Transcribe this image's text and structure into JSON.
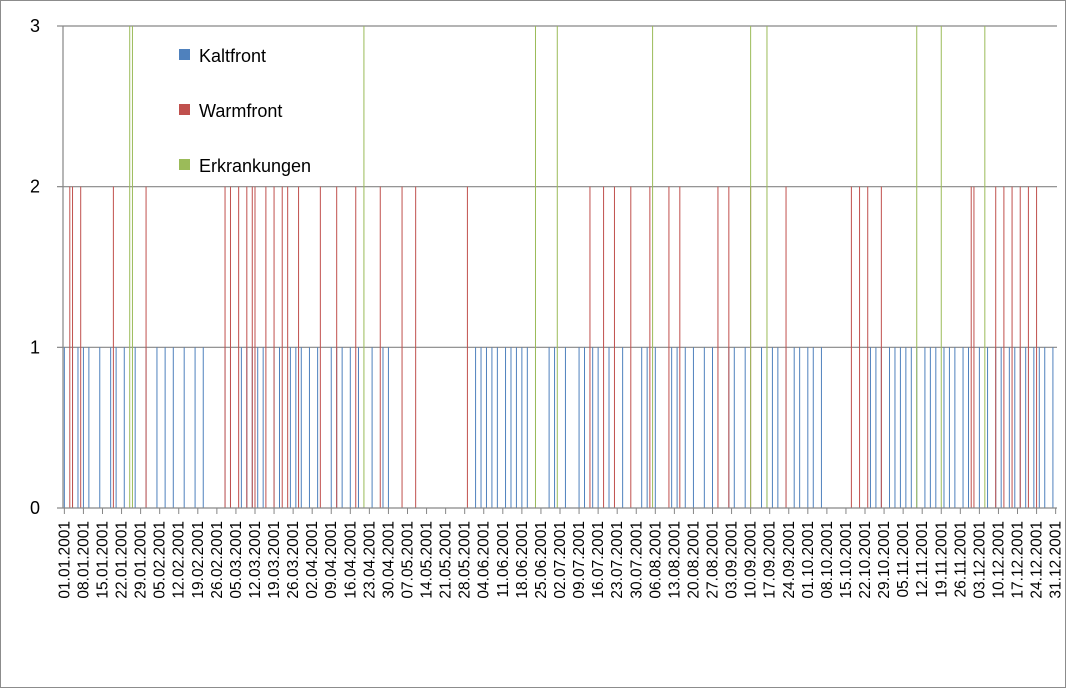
{
  "chart_data": {
    "type": "bar",
    "title": "",
    "xlabel": "",
    "ylabel": "",
    "ylim": [
      0,
      3
    ],
    "yticks": [
      "0",
      "1",
      "2",
      "3"
    ],
    "grid": true,
    "legend_position": "top-left",
    "x_range": [
      "01.01.2001",
      "31.12.2001"
    ],
    "xtick_labels": [
      "01.01.2001",
      "08.01.2001",
      "15.01.2001",
      "22.01.2001",
      "29.01.2001",
      "05.02.2001",
      "12.02.2001",
      "19.02.2001",
      "26.02.2001",
      "05.03.2001",
      "12.03.2001",
      "19.03.2001",
      "26.03.2001",
      "02.04.2001",
      "09.04.2001",
      "16.04.2001",
      "23.04.2001",
      "30.04.2001",
      "07.05.2001",
      "14.05.2001",
      "21.05.2001",
      "28.05.2001",
      "04.06.2001",
      "11.06.2001",
      "18.06.2001",
      "25.06.2001",
      "02.07.2001",
      "09.07.2001",
      "16.07.2001",
      "23.07.2001",
      "30.07.2001",
      "06.08.2001",
      "13.08.2001",
      "20.08.2001",
      "27.08.2001",
      "03.09.2001",
      "10.09.2001",
      "17.09.2001",
      "24.09.2001",
      "01.10.2001",
      "08.10.2001",
      "15.10.2001",
      "22.10.2001",
      "29.10.2001",
      "05.11.2001",
      "12.11.2001",
      "19.11.2001",
      "26.11.2001",
      "03.12.2001",
      "10.12.2001",
      "17.12.2001",
      "24.12.2001",
      "31.12.2001"
    ],
    "series": [
      {
        "name": "Kaltfront",
        "color": "#4f81bd",
        "value": 1,
        "dates": [
          "01.01.2001",
          "04.01.2001",
          "06.01.2001",
          "08.01.2001",
          "10.01.2001",
          "14.01.2001",
          "18.01.2001",
          "20.01.2001",
          "23.01.2001",
          "27.01.2001",
          "31.01.2001",
          "04.02.2001",
          "07.02.2001",
          "10.02.2001",
          "14.02.2001",
          "18.02.2001",
          "21.02.2001",
          "01.03.2001",
          "03.03.2001",
          "07.03.2001",
          "09.03.2001",
          "11.03.2001",
          "13.03.2001",
          "15.03.2001",
          "19.03.2001",
          "21.03.2001",
          "25.03.2001",
          "27.03.2001",
          "29.03.2001",
          "01.04.2001",
          "04.04.2001",
          "09.04.2001",
          "11.04.2001",
          "13.04.2001",
          "16.04.2001",
          "19.04.2001",
          "24.04.2001",
          "28.04.2001",
          "30.04.2001",
          "01.06.2001",
          "03.06.2001",
          "05.06.2001",
          "07.06.2001",
          "09.06.2001",
          "12.06.2001",
          "14.06.2001",
          "16.06.2001",
          "18.06.2001",
          "20.06.2001",
          "23.06.2001",
          "28.06.2001",
          "30.06.2001",
          "04.07.2001",
          "09.07.2001",
          "11.07.2001",
          "14.07.2001",
          "16.07.2001",
          "20.07.2001",
          "25.07.2001",
          "01.08.2001",
          "03.08.2001",
          "06.08.2001",
          "12.08.2001",
          "14.08.2001",
          "17.08.2001",
          "20.08.2001",
          "24.08.2001",
          "27.08.2001",
          "02.09.2001",
          "04.09.2001",
          "08.09.2001",
          "14.09.2001",
          "16.09.2001",
          "18.09.2001",
          "20.09.2001",
          "23.09.2001",
          "26.09.2001",
          "28.09.2001",
          "01.10.2001",
          "03.10.2001",
          "06.10.2001",
          "24.10.2001",
          "26.10.2001",
          "28.10.2001",
          "31.10.2001",
          "02.11.2001",
          "04.11.2001",
          "06.11.2001",
          "08.11.2001",
          "10.11.2001",
          "13.11.2001",
          "15.11.2001",
          "17.11.2001",
          "20.11.2001",
          "22.11.2001",
          "24.11.2001",
          "27.11.2001",
          "29.11.2001",
          "03.12.2001",
          "06.12.2001",
          "09.12.2001",
          "11.12.2001",
          "14.12.2001",
          "16.12.2001",
          "18.12.2001",
          "20.12.2001",
          "23.12.2001",
          "25.12.2001",
          "27.12.2001",
          "30.12.2001"
        ]
      },
      {
        "name": "Warmfront",
        "color": "#c0504d",
        "value": 2,
        "dates": [
          "03.01.2001",
          "04.01.2001",
          "07.01.2001",
          "19.01.2001",
          "31.01.2001",
          "01.03.2001",
          "03.03.2001",
          "06.03.2001",
          "09.03.2001",
          "11.03.2001",
          "12.03.2001",
          "16.03.2001",
          "19.03.2001",
          "22.03.2001",
          "24.03.2001",
          "28.03.2001",
          "05.04.2001",
          "11.04.2001",
          "18.04.2001",
          "27.04.2001",
          "05.05.2001",
          "10.05.2001",
          "29.05.2001",
          "13.07.2001",
          "18.07.2001",
          "22.07.2001",
          "28.07.2001",
          "04.08.2001",
          "11.08.2001",
          "15.08.2001",
          "29.08.2001",
          "02.09.2001",
          "10.09.2001",
          "23.09.2001",
          "17.10.2001",
          "20.10.2001",
          "23.10.2001",
          "28.10.2001",
          "30.11.2001",
          "01.12.2001",
          "09.12.2001",
          "12.12.2001",
          "15.12.2001",
          "18.12.2001",
          "21.12.2001",
          "24.12.2001"
        ]
      },
      {
        "name": "Erkrankungen",
        "color": "#9bbb59",
        "value": 3,
        "dates": [
          "25.01.2001",
          "26.01.2001",
          "21.04.2001",
          "23.06.2001",
          "01.07.2001",
          "05.08.2001",
          "10.09.2001",
          "16.09.2001",
          "10.11.2001",
          "19.11.2001",
          "05.12.2001"
        ]
      }
    ]
  }
}
